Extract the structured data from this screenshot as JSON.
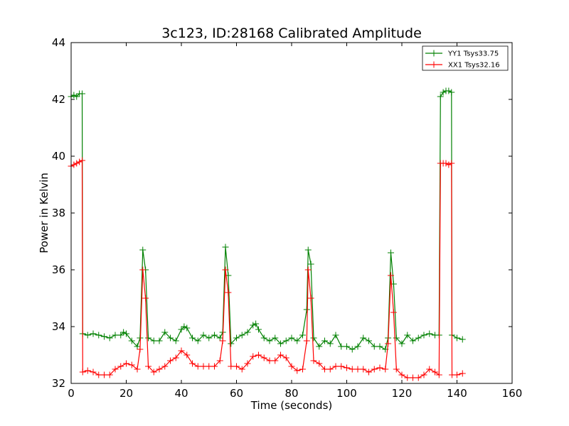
{
  "chart_data": {
    "type": "line",
    "title": "3c123, ID:28168 Calibrated Amplitude",
    "xlabel": "Time (seconds)",
    "ylabel": "Power in Kelvin",
    "xlim": [
      0,
      160
    ],
    "ylim": [
      32,
      44
    ],
    "xticks": [
      "0",
      "20",
      "40",
      "60",
      "80",
      "100",
      "120",
      "140",
      "160"
    ],
    "yticks": [
      "32",
      "34",
      "36",
      "38",
      "40",
      "42",
      "44"
    ],
    "grid": false,
    "legend_position": "top-right",
    "series": [
      {
        "name": "YY1 Tsys33.75",
        "color": "#008000",
        "marker": "+",
        "points": [
          [
            0,
            42.1
          ],
          [
            1,
            42.15
          ],
          [
            2,
            42.1
          ],
          [
            3,
            42.2
          ],
          [
            4,
            42.2
          ],
          [
            4.2,
            33.75
          ],
          [
            6,
            33.7
          ],
          [
            8,
            33.75
          ],
          [
            10,
            33.7
          ],
          [
            12,
            33.65
          ],
          [
            14,
            33.6
          ],
          [
            16,
            33.7
          ],
          [
            18,
            33.7
          ],
          [
            19,
            33.8
          ],
          [
            20,
            33.75
          ],
          [
            22,
            33.5
          ],
          [
            24,
            33.3
          ],
          [
            25,
            33.6
          ],
          [
            26,
            36.7
          ],
          [
            27,
            36.0
          ],
          [
            28,
            33.6
          ],
          [
            30,
            33.5
          ],
          [
            32,
            33.5
          ],
          [
            34,
            33.8
          ],
          [
            36,
            33.6
          ],
          [
            38,
            33.5
          ],
          [
            40,
            33.9
          ],
          [
            41,
            34.0
          ],
          [
            42,
            33.95
          ],
          [
            44,
            33.6
          ],
          [
            46,
            33.5
          ],
          [
            48,
            33.7
          ],
          [
            50,
            33.6
          ],
          [
            52,
            33.7
          ],
          [
            54,
            33.6
          ],
          [
            55,
            33.8
          ],
          [
            56,
            36.8
          ],
          [
            57,
            35.8
          ],
          [
            58,
            33.4
          ],
          [
            60,
            33.6
          ],
          [
            62,
            33.7
          ],
          [
            64,
            33.8
          ],
          [
            66,
            34.05
          ],
          [
            67,
            34.1
          ],
          [
            68,
            33.9
          ],
          [
            70,
            33.6
          ],
          [
            72,
            33.5
          ],
          [
            74,
            33.6
          ],
          [
            76,
            33.4
          ],
          [
            78,
            33.5
          ],
          [
            80,
            33.6
          ],
          [
            82,
            33.5
          ],
          [
            84,
            33.7
          ],
          [
            85.5,
            34.6
          ],
          [
            86,
            36.7
          ],
          [
            87,
            36.2
          ],
          [
            88,
            33.6
          ],
          [
            90,
            33.3
          ],
          [
            92,
            33.5
          ],
          [
            94,
            33.4
          ],
          [
            96,
            33.7
          ],
          [
            98,
            33.3
          ],
          [
            100,
            33.3
          ],
          [
            102,
            33.2
          ],
          [
            104,
            33.3
          ],
          [
            106,
            33.6
          ],
          [
            108,
            33.5
          ],
          [
            110,
            33.3
          ],
          [
            112,
            33.3
          ],
          [
            114,
            33.2
          ],
          [
            115,
            33.6
          ],
          [
            116,
            36.6
          ],
          [
            117,
            35.5
          ],
          [
            118,
            33.6
          ],
          [
            120,
            33.4
          ],
          [
            122,
            33.7
          ],
          [
            124,
            33.5
          ],
          [
            126,
            33.6
          ],
          [
            128,
            33.7
          ],
          [
            130,
            33.75
          ],
          [
            132,
            33.7
          ],
          [
            133.5,
            33.7
          ],
          [
            134,
            42.1
          ],
          [
            135,
            42.25
          ],
          [
            136,
            42.3
          ],
          [
            137,
            42.3
          ],
          [
            138,
            42.25
          ],
          [
            138.2,
            33.7
          ],
          [
            140,
            33.6
          ],
          [
            142,
            33.55
          ]
        ]
      },
      {
        "name": "XX1 Tsys32.16",
        "color": "#ff0000",
        "marker": "+",
        "points": [
          [
            0,
            39.65
          ],
          [
            1,
            39.7
          ],
          [
            2,
            39.75
          ],
          [
            3,
            39.8
          ],
          [
            4,
            39.85
          ],
          [
            4.2,
            32.4
          ],
          [
            6,
            32.45
          ],
          [
            8,
            32.4
          ],
          [
            10,
            32.3
          ],
          [
            12,
            32.3
          ],
          [
            14,
            32.3
          ],
          [
            16,
            32.5
          ],
          [
            18,
            32.6
          ],
          [
            20,
            32.7
          ],
          [
            22,
            32.65
          ],
          [
            24,
            32.5
          ],
          [
            25,
            33.2
          ],
          [
            26,
            36.0
          ],
          [
            27,
            35.0
          ],
          [
            28,
            32.6
          ],
          [
            30,
            32.4
          ],
          [
            32,
            32.5
          ],
          [
            34,
            32.6
          ],
          [
            36,
            32.8
          ],
          [
            38,
            32.9
          ],
          [
            40,
            33.15
          ],
          [
            42,
            33.0
          ],
          [
            44,
            32.7
          ],
          [
            46,
            32.6
          ],
          [
            48,
            32.6
          ],
          [
            50,
            32.6
          ],
          [
            52,
            32.6
          ],
          [
            54,
            32.8
          ],
          [
            55,
            33.5
          ],
          [
            56,
            36.0
          ],
          [
            57,
            35.2
          ],
          [
            58,
            32.6
          ],
          [
            60,
            32.6
          ],
          [
            62,
            32.5
          ],
          [
            64,
            32.7
          ],
          [
            66,
            32.95
          ],
          [
            68,
            33.0
          ],
          [
            70,
            32.9
          ],
          [
            72,
            32.8
          ],
          [
            74,
            32.8
          ],
          [
            76,
            33.0
          ],
          [
            78,
            32.9
          ],
          [
            80,
            32.6
          ],
          [
            82,
            32.45
          ],
          [
            84,
            32.5
          ],
          [
            85.5,
            33.5
          ],
          [
            86,
            36.0
          ],
          [
            87,
            35.0
          ],
          [
            88,
            32.8
          ],
          [
            90,
            32.7
          ],
          [
            92,
            32.5
          ],
          [
            94,
            32.5
          ],
          [
            96,
            32.6
          ],
          [
            98,
            32.6
          ],
          [
            100,
            32.55
          ],
          [
            102,
            32.5
          ],
          [
            104,
            32.5
          ],
          [
            106,
            32.5
          ],
          [
            108,
            32.4
          ],
          [
            110,
            32.5
          ],
          [
            112,
            32.55
          ],
          [
            114,
            32.5
          ],
          [
            115,
            33.4
          ],
          [
            116,
            35.8
          ],
          [
            117,
            34.5
          ],
          [
            118,
            32.5
          ],
          [
            120,
            32.3
          ],
          [
            122,
            32.2
          ],
          [
            124,
            32.2
          ],
          [
            126,
            32.2
          ],
          [
            128,
            32.3
          ],
          [
            130,
            32.5
          ],
          [
            132,
            32.4
          ],
          [
            133.5,
            32.3
          ],
          [
            134,
            39.75
          ],
          [
            135,
            39.75
          ],
          [
            136,
            39.75
          ],
          [
            137,
            39.7
          ],
          [
            138,
            39.75
          ],
          [
            138.2,
            32.3
          ],
          [
            140,
            32.3
          ],
          [
            142,
            32.35
          ]
        ]
      }
    ]
  }
}
